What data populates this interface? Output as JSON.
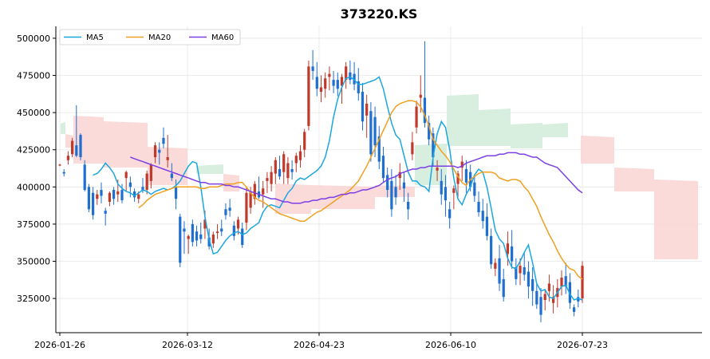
{
  "chart_data": {
    "type": "candlestick",
    "title": "373220.KS",
    "xlabel": "",
    "ylabel": "",
    "ylim": [
      302000,
      508000
    ],
    "x_tick_labels": [
      "2026-01-26",
      "2026-03-12",
      "2026-04-23",
      "2026-06-10",
      "2026-07-23"
    ],
    "y_ticks": [
      325000,
      350000,
      375000,
      400000,
      425000,
      450000,
      475000,
      500000
    ],
    "legend": {
      "position": "top-left",
      "entries": [
        "MA5",
        "MA20",
        "MA60"
      ]
    },
    "grid": true,
    "colors": {
      "up": "#c0392b",
      "down": "#1f6fd0",
      "ma5": "#1aa7e0",
      "ma20": "#f0a020",
      "ma60": "#7b3fe4",
      "cloud_bear": "#fbd6d6",
      "cloud_bull": "#d4eddc"
    },
    "series": [
      {
        "name": "MA5",
        "values": [
          408000,
          409000,
          412000,
          416000,
          413000,
          409000,
          402000,
          399000,
          397000,
          396000,
          394000,
          396000,
          398000,
          397000,
          395000,
          397000,
          398000,
          399000,
          398000,
          399000,
          401000,
          404000,
          409000,
          414000,
          417000,
          416000,
          400000,
          380000,
          365000,
          355000,
          356000,
          360000,
          364000,
          367000,
          369000,
          370000,
          368000,
          369000,
          372000,
          374000,
          376000,
          383000,
          387000,
          388000,
          387000,
          386000,
          391000,
          396000,
          399000,
          404000,
          406000,
          405000,
          407000,
          409000,
          411000,
          414000,
          420000,
          431000,
          447000,
          459000,
          467000,
          473000,
          474000,
          472000,
          469000,
          469000,
          470000,
          471000,
          472000,
          474000,
          466000,
          454000,
          443000,
          435000,
          432000,
          421000,
          410000,
          404000,
          404000,
          401000,
          400000,
          397000,
          420000,
          436000,
          444000,
          440000,
          425000,
          406000,
          392000,
          388000,
          395000,
          400000,
          408000,
          412000,
          410000,
          400000,
          386000,
          371000,
          365000,
          362000,
          352000,
          346000,
          345000,
          350000,
          356000,
          361000,
          349000,
          335000,
          330000,
          331000,
          326000,
          325000,
          329000,
          333000,
          334000,
          328000,
          324000,
          325000,
          324000
        ]
      },
      {
        "name": "MA20",
        "values": [
          386000,
          388000,
          391000,
          393000,
          395000,
          396000,
          397000,
          398000,
          399000,
          400000,
          400000,
          400000,
          400000,
          400000,
          400000,
          399000,
          399000,
          400000,
          400000,
          400000,
          401000,
          402000,
          402000,
          402000,
          403000,
          403000,
          400000,
          396000,
          393000,
          391000,
          390000,
          388000,
          386000,
          384000,
          382000,
          381000,
          380000,
          379000,
          378000,
          377000,
          377000,
          379000,
          381000,
          383000,
          384000,
          386000,
          388000,
          390000,
          392000,
          394000,
          396000,
          398000,
          401000,
          404000,
          409000,
          414000,
          420000,
          426000,
          432000,
          438000,
          444000,
          450000,
          454000,
          456000,
          457000,
          458000,
          458000,
          457000,
          454000,
          448000,
          441000,
          432000,
          428000,
          424000,
          421000,
          417000,
          412000,
          407000,
          403000,
          401000,
          405000,
          407000,
          409000,
          410000,
          410000,
          410000,
          409000,
          406000,
          405000,
          404000,
          405000,
          405000,
          404000,
          400000,
          397000,
          392000,
          387000,
          380000,
          374000,
          368000,
          363000,
          357000,
          352000,
          348000,
          345000,
          344000,
          340000,
          338000
        ]
      },
      {
        "name": "MA60",
        "values": [
          420000,
          419000,
          418000,
          417000,
          416000,
          415000,
          414000,
          413000,
          412000,
          411000,
          410000,
          409000,
          408000,
          407000,
          406000,
          405000,
          404000,
          403000,
          403000,
          402000,
          402000,
          402000,
          402000,
          401000,
          401000,
          400000,
          400000,
          399000,
          398000,
          397000,
          396000,
          395000,
          394000,
          393000,
          392000,
          392000,
          391000,
          390000,
          390000,
          389000,
          389000,
          389000,
          390000,
          390000,
          391000,
          391000,
          392000,
          392000,
          393000,
          393000,
          394000,
          395000,
          395000,
          396000,
          396000,
          397000,
          398000,
          398000,
          399000,
          400000,
          401000,
          403000,
          405000,
          406000,
          407000,
          409000,
          410000,
          411000,
          412000,
          412000,
          413000,
          413000,
          414000,
          414000,
          414000,
          414000,
          414000,
          414000,
          414000,
          413000,
          414000,
          416000,
          417000,
          418000,
          419000,
          420000,
          421000,
          421000,
          421000,
          422000,
          422000,
          423000,
          423000,
          423000,
          422000,
          422000,
          421000,
          420000,
          420000,
          418000,
          416000,
          415000,
          414000,
          413000,
          410000,
          407000,
          404000,
          401000,
          398000,
          396000
        ]
      }
    ],
    "candles": [
      [
        415000,
        415500,
        414000,
        415000
      ],
      [
        410000,
        412000,
        407000,
        409000
      ],
      [
        418000,
        424000,
        415000,
        421000
      ],
      [
        422000,
        433000,
        420000,
        431000
      ],
      [
        428000,
        455000,
        420000,
        421000
      ],
      [
        435000,
        436000,
        418000,
        420000
      ],
      [
        415000,
        418000,
        397000,
        398000
      ],
      [
        400000,
        402000,
        383000,
        385000
      ],
      [
        396000,
        400000,
        378000,
        381000
      ],
      [
        392000,
        398000,
        388000,
        395000
      ],
      [
        398000,
        403000,
        389000,
        394000
      ],
      [
        384000,
        386000,
        374000,
        382000
      ],
      [
        390000,
        397000,
        387000,
        396000
      ],
      [
        398000,
        400000,
        388000,
        392000
      ],
      [
        395000,
        405000,
        390000,
        397000
      ],
      [
        398000,
        402000,
        389000,
        391000
      ],
      [
        406000,
        411000,
        397000,
        410000
      ],
      [
        403000,
        407000,
        393000,
        400000
      ],
      [
        397000,
        399000,
        390000,
        393000
      ],
      [
        392000,
        397000,
        389000,
        395000
      ],
      [
        400000,
        406000,
        396000,
        398000
      ],
      [
        398000,
        411000,
        395000,
        409000
      ],
      [
        404000,
        416000,
        399000,
        415000
      ],
      [
        420000,
        430000,
        416000,
        428000
      ],
      [
        425000,
        430000,
        415000,
        423000
      ],
      [
        433000,
        440000,
        426000,
        429000
      ],
      [
        418000,
        435000,
        413000,
        420000
      ],
      [
        409000,
        416000,
        404000,
        406000
      ],
      [
        400000,
        405000,
        385000,
        392000
      ],
      [
        380000,
        382000,
        346000,
        349000
      ],
      [
        372000,
        377000,
        355000,
        370000
      ],
      [
        365000,
        368000,
        355000,
        367000
      ],
      [
        375000,
        378000,
        360000,
        363000
      ],
      [
        370000,
        374000,
        360000,
        364000
      ],
      [
        368000,
        376000,
        362000,
        365000
      ],
      [
        372000,
        384000,
        365000,
        378000
      ],
      [
        366000,
        372000,
        358000,
        360000
      ],
      [
        362000,
        370000,
        359000,
        368000
      ],
      [
        369000,
        375000,
        365000,
        370000
      ],
      [
        372000,
        378000,
        367000,
        370000
      ],
      [
        385000,
        389000,
        378000,
        381000
      ],
      [
        386000,
        392000,
        380000,
        384000
      ],
      [
        374000,
        377000,
        364000,
        367000
      ],
      [
        372000,
        380000,
        368000,
        378000
      ],
      [
        372000,
        376000,
        359000,
        361000
      ],
      [
        376000,
        400000,
        371000,
        396000
      ],
      [
        386000,
        400000,
        382000,
        397000
      ],
      [
        392000,
        404000,
        388000,
        402000
      ],
      [
        397000,
        407000,
        392000,
        393000
      ],
      [
        395000,
        404000,
        386000,
        399000
      ],
      [
        404000,
        410000,
        396000,
        406000
      ],
      [
        402000,
        414000,
        397000,
        410000
      ],
      [
        409000,
        420000,
        402000,
        418000
      ],
      [
        412000,
        421000,
        405000,
        407000
      ],
      [
        410000,
        424000,
        402000,
        422000
      ],
      [
        406000,
        420000,
        402000,
        416000
      ],
      [
        412000,
        418000,
        405000,
        410000
      ],
      [
        416000,
        423000,
        410000,
        421000
      ],
      [
        418000,
        428000,
        413000,
        424000
      ],
      [
        425000,
        439000,
        420000,
        437000
      ],
      [
        441000,
        485000,
        438000,
        481000
      ],
      [
        481000,
        492000,
        472000,
        478000
      ],
      [
        474000,
        484000,
        461000,
        466000
      ],
      [
        464000,
        475000,
        457000,
        467000
      ],
      [
        466000,
        477000,
        460000,
        473000
      ],
      [
        474000,
        481000,
        465000,
        476000
      ],
      [
        472000,
        478000,
        463000,
        468000
      ],
      [
        472000,
        477000,
        461000,
        466000
      ],
      [
        468000,
        476000,
        456000,
        474000
      ],
      [
        472000,
        484000,
        466000,
        481000
      ],
      [
        477000,
        485000,
        469000,
        472000
      ],
      [
        476000,
        484000,
        465000,
        469000
      ],
      [
        471000,
        480000,
        458000,
        463000
      ],
      [
        464000,
        470000,
        438000,
        444000
      ],
      [
        448000,
        462000,
        433000,
        456000
      ],
      [
        451000,
        457000,
        417000,
        422000
      ],
      [
        447000,
        454000,
        420000,
        428000
      ],
      [
        434000,
        441000,
        412000,
        417000
      ],
      [
        421000,
        427000,
        403000,
        406000
      ],
      [
        408000,
        413000,
        393000,
        398000
      ],
      [
        404000,
        412000,
        380000,
        385000
      ],
      [
        400000,
        408000,
        388000,
        393000
      ],
      [
        406000,
        416000,
        398000,
        410000
      ],
      [
        403000,
        410000,
        390000,
        399000
      ],
      [
        390000,
        396000,
        378000,
        385000
      ],
      [
        422000,
        437000,
        418000,
        430000
      ],
      [
        440000,
        458000,
        436000,
        454000
      ],
      [
        460000,
        475000,
        450000,
        462000
      ],
      [
        460000,
        498000,
        440000,
        443000
      ],
      [
        443000,
        448000,
        428000,
        432000
      ],
      [
        436000,
        440000,
        414000,
        420000
      ],
      [
        411000,
        418000,
        404000,
        413000
      ],
      [
        404000,
        412000,
        388000,
        395000
      ],
      [
        400000,
        408000,
        380000,
        391000
      ],
      [
        385000,
        390000,
        372000,
        379000
      ],
      [
        396000,
        401000,
        385000,
        399000
      ],
      [
        402000,
        411000,
        393000,
        409000
      ],
      [
        413000,
        421000,
        404000,
        417000
      ],
      [
        412000,
        418000,
        396000,
        403000
      ],
      [
        410000,
        415000,
        397000,
        400000
      ],
      [
        403000,
        408000,
        390000,
        394000
      ],
      [
        390000,
        397000,
        380000,
        383000
      ],
      [
        384000,
        392000,
        372000,
        377000
      ],
      [
        380000,
        389000,
        364000,
        367000
      ],
      [
        367000,
        372000,
        345000,
        348000
      ],
      [
        345000,
        352000,
        340000,
        349000
      ],
      [
        352000,
        361000,
        330000,
        335000
      ],
      [
        338000,
        345000,
        323000,
        326000
      ],
      [
        355000,
        370000,
        347000,
        362000
      ],
      [
        360000,
        371000,
        345000,
        350000
      ],
      [
        346000,
        352000,
        334000,
        338000
      ],
      [
        342000,
        352000,
        334000,
        347000
      ],
      [
        346000,
        356000,
        337000,
        341000
      ],
      [
        343000,
        350000,
        325000,
        333000
      ],
      [
        338000,
        346000,
        320000,
        330000
      ],
      [
        330000,
        335000,
        318000,
        321000
      ],
      [
        326000,
        332000,
        309000,
        314000
      ],
      [
        324000,
        331000,
        317000,
        328000
      ],
      [
        330000,
        341000,
        323000,
        335000
      ],
      [
        322000,
        334000,
        315000,
        326000
      ],
      [
        326000,
        338000,
        319000,
        332000
      ],
      [
        333000,
        344000,
        327000,
        339000
      ],
      [
        340000,
        349000,
        328000,
        333000
      ],
      [
        336000,
        342000,
        318000,
        322000
      ],
      [
        319000,
        321000,
        313000,
        316000
      ],
      [
        326000,
        331000,
        319000,
        323000
      ],
      [
        325000,
        350000,
        322000,
        347000
      ]
    ],
    "cloud": [
      [
        1,
        431000,
        429000
      ],
      [
        2,
        430000,
        429000
      ],
      [
        3,
        429000,
        421000
      ],
      [
        4,
        428000,
        421000
      ],
      [
        5,
        428000,
        421000
      ],
      [
        6,
        427000,
        419000
      ],
      [
        7,
        426000,
        418000
      ],
      [
        8,
        426000,
        416000
      ],
      [
        9,
        425000,
        414000
      ],
      [
        10,
        424000,
        414000
      ],
      [
        11,
        424000,
        413000
      ],
      [
        12,
        423000,
        413000
      ],
      [
        13,
        423000,
        412000
      ],
      [
        14,
        422000,
        411000
      ],
      [
        15,
        421000,
        409000
      ],
      [
        16,
        421000,
        409000
      ],
      [
        17,
        420000,
        408000
      ],
      [
        18,
        420000,
        407000
      ],
      [
        19,
        419000,
        406000
      ],
      [
        20,
        418000,
        405000
      ]
    ]
  }
}
